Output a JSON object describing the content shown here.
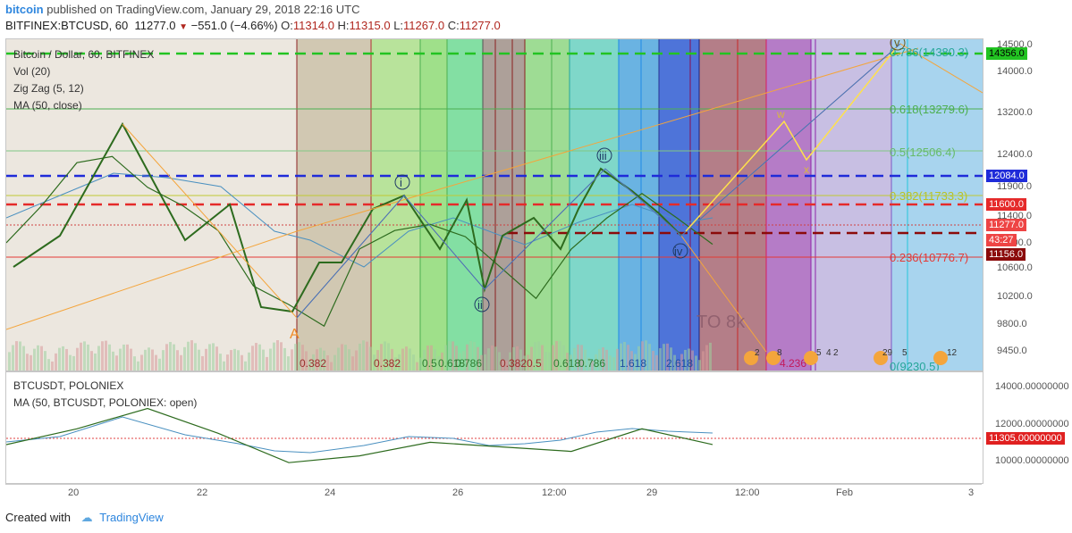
{
  "header": {
    "brand": "bitcoin",
    "published": "published on TradingView.com, January 29, 2018 22:16 UTC",
    "symbol": "BITFINEX:BTCUSD, 60",
    "last": "11277.0",
    "change": "−551.0 (−4.66%)",
    "o_label": "O:",
    "o": "11314.0",
    "h_label": "H:",
    "h": "11315.0",
    "l_label": "L:",
    "l": "11267.0",
    "c_label": "C:",
    "c": "11277.0"
  },
  "main_pane": {
    "legend": [
      "Bitcoin / Dollar, 60, BITFINEX",
      "Vol (20)",
      "Zig Zag (5, 12)",
      "MA (50, close)"
    ],
    "annotation_text": "TO 8k",
    "wave_labels": [
      "i",
      "ii",
      "iii",
      "iv",
      "v",
      "A",
      "w",
      "x"
    ],
    "fib_labels": [
      "0.786(14380.3)",
      "0.618(13279.6)",
      "0.5(12506.4)",
      "0.382(11733.3)",
      "0.236(10776.7)",
      "0(9230.5)"
    ],
    "time_fib_labels": [
      "0.382",
      "0.382",
      "0.5",
      "0.618",
      "0.786",
      "0.382",
      "0.5",
      "0.618",
      "0.786",
      "1.618",
      "2.618",
      "4.236"
    ],
    "price_axis_ticks": [
      "14500.0",
      "14000.0",
      "13200.0",
      "12400.0",
      "11900.0",
      "11400.0",
      "11000.0",
      "10600.0",
      "10200.0",
      "9800.0",
      "9450.0"
    ],
    "price_tags": [
      {
        "label": "14356.0",
        "color": "#22c322",
        "text_color": "#000"
      },
      {
        "label": "12084.0",
        "color": "#1f2bd9",
        "text_color": "#fff"
      },
      {
        "label": "11600.0",
        "color": "#e52a2a",
        "text_color": "#fff"
      },
      {
        "label": "11277.0",
        "color": "#ee4444",
        "text_color": "#fff"
      },
      {
        "label": "43:27",
        "color": "#ee4444",
        "text_color": "#fff"
      },
      {
        "label": "11156.0",
        "color": "#8b0a0a",
        "text_color": "#fff"
      }
    ],
    "event_badges": [
      "2",
      "8",
      "5",
      "4",
      "2",
      "29",
      "5",
      "12"
    ]
  },
  "lower_pane": {
    "legend": [
      "BTCUSDT, POLONIEX",
      "MA (50, BTCUSDT, POLONIEX: open)"
    ],
    "axis_ticks": [
      "14000.00000000",
      "12000.00000000",
      "10000.00000000"
    ],
    "price_tag": {
      "label": "11305.00000000",
      "color": "#e02020"
    }
  },
  "time_axis": [
    "20",
    "22",
    "24",
    "26",
    "12:00",
    "29",
    "12:00",
    "Feb",
    "3"
  ],
  "footer": {
    "created_with": "Created with",
    "brand": "TradingView"
  },
  "chart_data": [
    {
      "type": "line",
      "title": "Bitcoin / Dollar, 60, BITFINEX",
      "series": [
        {
          "name": "BTCUSD",
          "x": [
            "Jan 19",
            "Jan 20",
            "Jan 20 12:00",
            "Jan 21",
            "Jan 21 12:00",
            "Jan 22",
            "Jan 22 12:00",
            "Jan 23",
            "Jan 23 12:00",
            "Jan 24",
            "Jan 24 12:00",
            "Jan 25",
            "Jan 25 12:00",
            "Jan 26",
            "Jan 26 12:00",
            "Jan 27",
            "Jan 27 12:00",
            "Jan 28",
            "Jan 28 12:00",
            "Jan 29",
            "Jan 29 12:00"
          ],
          "values": [
            11300,
            11900,
            12600,
            12700,
            12200,
            11900,
            11500,
            10600,
            10300,
            9950,
            11200,
            11500,
            11600,
            11400,
            10900,
            10400,
            11200,
            11700,
            12100,
            11700,
            11277
          ]
        }
      ],
      "horizontal_levels": [
        14356.0,
        12084.0,
        11600.0,
        11156.0
      ],
      "fib_retracement": {
        "0.786": 14380.3,
        "0.618": 13279.6,
        "0.5": 12506.4,
        "0.382": 11733.3,
        "0.236": 10776.7,
        "0": 9230.5
      },
      "ylim": [
        9230,
        14600
      ]
    },
    {
      "type": "line",
      "title": "BTCUSDT, POLONIEX",
      "series": [
        {
          "name": "BTCUSDT",
          "x": [
            "Jan 19",
            "Jan 20",
            "Jan 21",
            "Jan 22",
            "Jan 23",
            "Jan 24",
            "Jan 25",
            "Jan 26",
            "Jan 27",
            "Jan 28",
            "Jan 29"
          ],
          "values": [
            11300,
            12000,
            12900,
            11800,
            10500,
            10800,
            11400,
            11200,
            11000,
            12000,
            11305
          ]
        }
      ],
      "ylim": [
        9600,
        14500
      ]
    }
  ]
}
